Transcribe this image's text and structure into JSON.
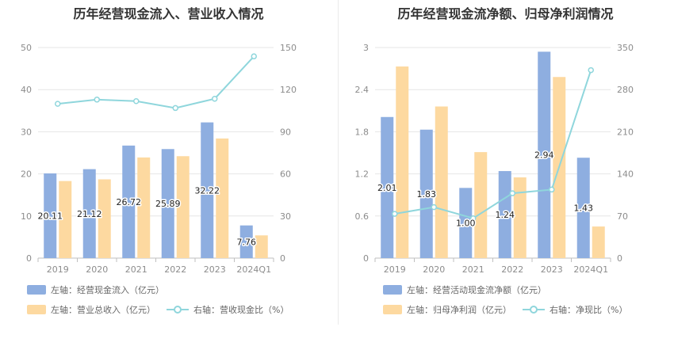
{
  "chart_data": [
    {
      "type": "bar",
      "title": "历年经营现金流入、营业收入情况",
      "categories": [
        "2019",
        "2020",
        "2021",
        "2022",
        "2023",
        "2024Q1"
      ],
      "y_left": {
        "ticks": [
          "0",
          "10",
          "20",
          "30",
          "40",
          "50"
        ],
        "ylim": [
          0,
          50
        ]
      },
      "y_right": {
        "ticks": [
          "0",
          "30",
          "60",
          "90",
          "120",
          "150"
        ],
        "ylim": [
          0,
          150
        ]
      },
      "series": [
        {
          "name": "左轴：经营现金流入（亿元）",
          "kind": "bar",
          "axis": "left",
          "color": "#8eaee0",
          "values": [
            20.11,
            21.12,
            26.72,
            25.89,
            32.22,
            7.76
          ],
          "labels": [
            "20.11",
            "21.12",
            "26.72",
            "25.89",
            "32.22",
            "7.76"
          ]
        },
        {
          "name": "左轴：营业总收入（亿元）",
          "kind": "bar",
          "axis": "left",
          "color": "#fdd9a0",
          "values": [
            18.3,
            18.7,
            23.9,
            24.2,
            28.4,
            5.4
          ]
        },
        {
          "name": "右轴：营收现金比（%）",
          "kind": "line",
          "axis": "right",
          "color": "#8fd6dc",
          "values": [
            109.9,
            112.9,
            111.8,
            106.9,
            113.5,
            143.7
          ]
        }
      ],
      "grid": true,
      "legend_position": "bottom"
    },
    {
      "type": "bar",
      "title": "历年经营现金流净额、归母净利润情况",
      "categories": [
        "2019",
        "2020",
        "2021",
        "2022",
        "2023",
        "2024Q1"
      ],
      "y_left": {
        "ticks": [
          "0",
          "0.6",
          "1.2",
          "1.8",
          "2.4",
          "3"
        ],
        "ylim": [
          0,
          3
        ]
      },
      "y_right": {
        "ticks": [
          "0",
          "70",
          "140",
          "210",
          "280",
          "350"
        ],
        "ylim": [
          0,
          350
        ]
      },
      "series": [
        {
          "name": "左轴：经营活动现金流净额（亿元）",
          "kind": "bar",
          "axis": "left",
          "color": "#8eaee0",
          "values": [
            2.01,
            1.83,
            1.0,
            1.24,
            2.94,
            1.43
          ],
          "labels": [
            "2.01",
            "1.83",
            "1.00",
            "1.24",
            "2.94",
            "1.43"
          ]
        },
        {
          "name": "左轴：归母净利润（亿元）",
          "kind": "bar",
          "axis": "left",
          "color": "#fdd9a0",
          "values": [
            2.73,
            2.16,
            1.51,
            1.15,
            2.58,
            0.45
          ]
        },
        {
          "name": "右轴：净现比（%）",
          "kind": "line",
          "axis": "right",
          "color": "#8fd6dc",
          "values": [
            73.6,
            84.7,
            66.2,
            107.8,
            113.9,
            312.4
          ]
        }
      ],
      "grid": true,
      "legend_position": "bottom"
    }
  ]
}
